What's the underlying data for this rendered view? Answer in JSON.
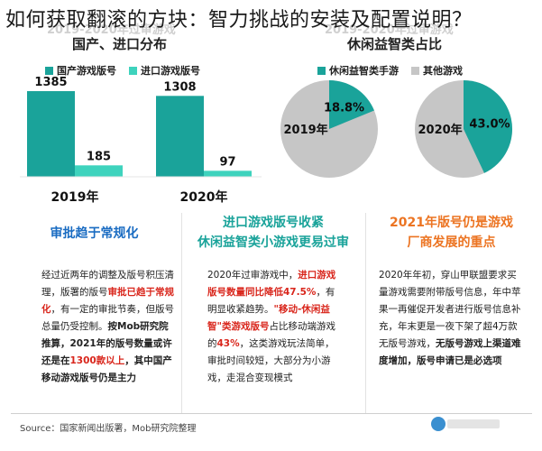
{
  "overlay_title": "如何获取翻滚的方块：智力挑战的安装及配置说明？",
  "ghost_left": "2019-2020年过审游戏",
  "ghost_right": "2019-2020年过审游戏",
  "colors": {
    "teal": "#1aa39a",
    "light_teal": "#3ed3bd",
    "gray": "#c6c6c6",
    "red": "#d9261c",
    "blue": "#1a6cc2",
    "orange": "#ec7422"
  },
  "chart_data": [
    {
      "type": "bar",
      "title": "国产、进口分布",
      "categories": [
        "2019年",
        "2020年"
      ],
      "series": [
        {
          "name": "国产游戏版号",
          "values": [
            1385,
            1308
          ]
        },
        {
          "name": "进口游戏版号",
          "values": [
            185,
            97
          ]
        }
      ],
      "data_labels": [
        [
          "1385",
          "185"
        ],
        [
          "1308",
          "97"
        ]
      ],
      "ylim": [
        0,
        1400
      ]
    },
    {
      "type": "pie",
      "title": "休闲益智类占比",
      "legend": [
        "休闲益智类手游",
        "其他游戏"
      ],
      "pies": [
        {
          "label": "2019年",
          "value": 18.8,
          "value_label": "18.8%"
        },
        {
          "label": "2020年",
          "value": 43.0,
          "value_label": "43.0%"
        }
      ]
    }
  ],
  "sections": [
    {
      "head": [
        "审批趋于常规化"
      ],
      "color": "#1a6cc2"
    },
    {
      "head": [
        "进口游戏版号收紧",
        "休闲益智类小游戏更易过审"
      ],
      "color": "#1aa39a"
    },
    {
      "head": [
        "2021年版号仍是游戏",
        "厂商发展的重点"
      ],
      "color": "#ec7422"
    }
  ],
  "col1": {
    "t1": "经过近两年的调整及版号积压清理，版署的版号",
    "r1": "审批已趋于常规化",
    "t2": "，有一定的审批节奏，但版号总量仍受控制。",
    "b1": "按Mob研究院推算，2021年的版号数量或许还是在",
    "r2": "1300款以上",
    "b2": "，其中国产移动游戏版号仍是主力"
  },
  "col2": {
    "t1": "2020年过审游戏中，",
    "r1": "进口游戏版号数量同比降低47.5%",
    "t2": "，有明显收紧趋势。",
    "r2": "\"移动-休闲益智\"类游戏版号",
    "t3": "占比移动端游戏的",
    "r3": "43%",
    "t4": "，这类游戏玩法简单，审批时间较短，大部分为小游戏，走混合变现模式"
  },
  "col3": {
    "t1": "2020年年初，穿山甲联盟要求买量游戏需要附带版号信息，年中苹果一再催促开发者进行版号信息补充，年末更是一夜下架了超4万款无版号游戏，",
    "b1": "无版号游戏上渠道难度增加，版号申请已是必选项"
  },
  "source": "Source：国家新闻出版署，Mob研究院整理"
}
